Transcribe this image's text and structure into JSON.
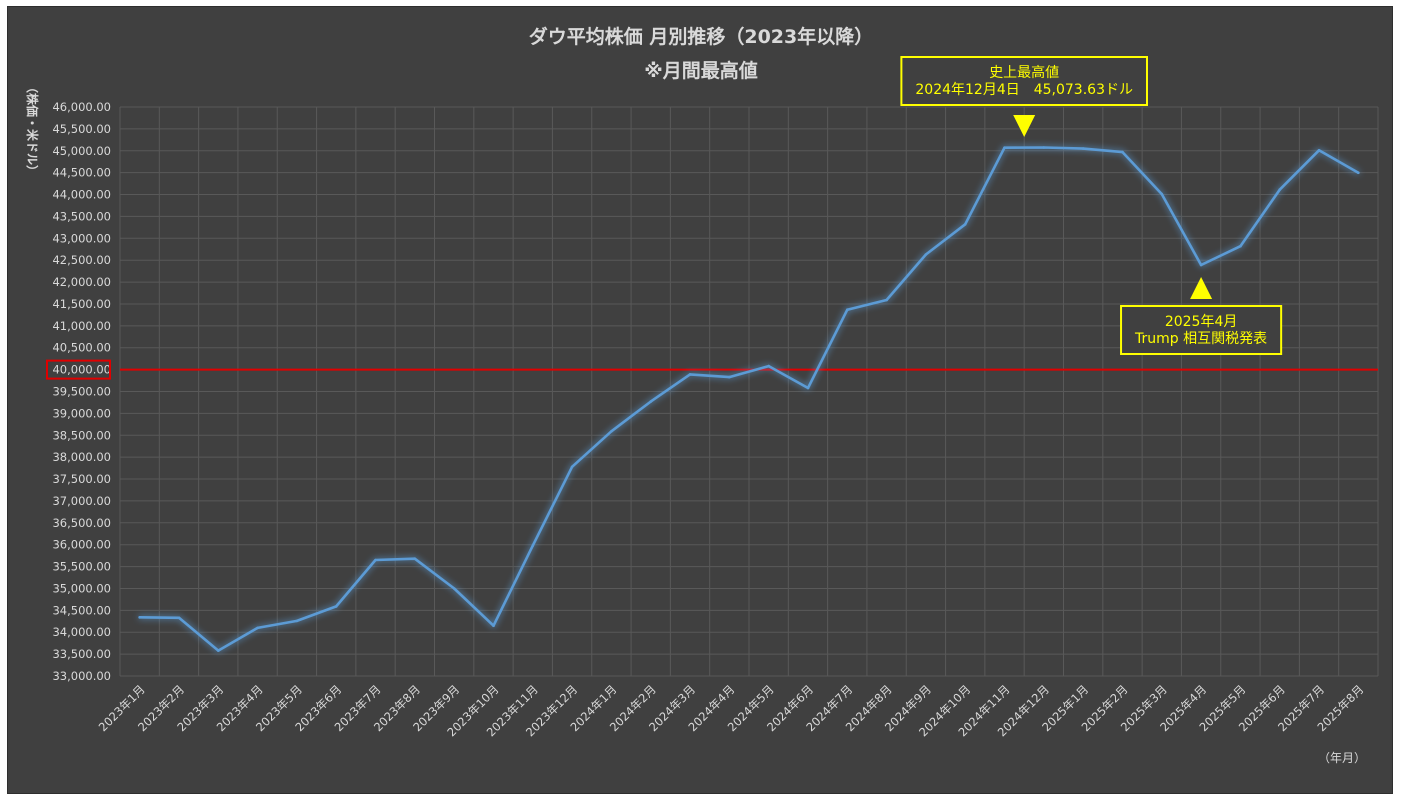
{
  "chart_data": {
    "type": "line",
    "title": "ダウ平均株価 月別推移（2023年以降）",
    "subtitle": "※月間最高値",
    "ylabel": "（株価・米ドル）",
    "xlabel": "（年月）",
    "ylim": [
      33000,
      46000
    ],
    "ytick_step": 500,
    "grid": true,
    "colors": {
      "background": "#404040",
      "line": "#5b9bd5",
      "grid": "#595959",
      "reference_line": "#e00000",
      "annotation": "#ffff00"
    },
    "categories": [
      "2023年1月",
      "2023年2月",
      "2023年3月",
      "2023年4月",
      "2023年5月",
      "2023年6月",
      "2023年7月",
      "2023年8月",
      "2023年9月",
      "2023年10月",
      "2023年11月",
      "2023年12月",
      "2024年1月",
      "2024年2月",
      "2024年3月",
      "2024年4月",
      "2024年5月",
      "2024年6月",
      "2024年7月",
      "2024年8月",
      "2024年9月",
      "2024年10月",
      "2024年11月",
      "2024年12月",
      "2025年1月",
      "2025年2月",
      "2025年3月",
      "2025年4月",
      "2025年5月",
      "2025年6月",
      "2025年7月",
      "2025年8月"
    ],
    "series": [
      {
        "values": [
          34340,
          34330,
          33580,
          34100,
          34260,
          34590,
          35650,
          35680,
          35000,
          34150,
          35980,
          37780,
          38590,
          39270,
          39890,
          39830,
          40080,
          39580,
          41370,
          41590,
          42630,
          43320,
          45070,
          45073.63,
          45050,
          44970,
          44010,
          42390,
          42820,
          44110,
          45010,
          44500
        ]
      }
    ],
    "reference_line": {
      "value": 40000,
      "label": "40,000.00"
    },
    "annotations": [
      {
        "lines": [
          "史上最高値",
          "2024年12月4日　45,073.63ドル"
        ],
        "marker": "down-triangle",
        "category_index": 22.5
      },
      {
        "lines": [
          "2025年4月",
          "Trump 相互関税発表"
        ],
        "marker": "up-triangle",
        "category_index": 27
      }
    ]
  }
}
